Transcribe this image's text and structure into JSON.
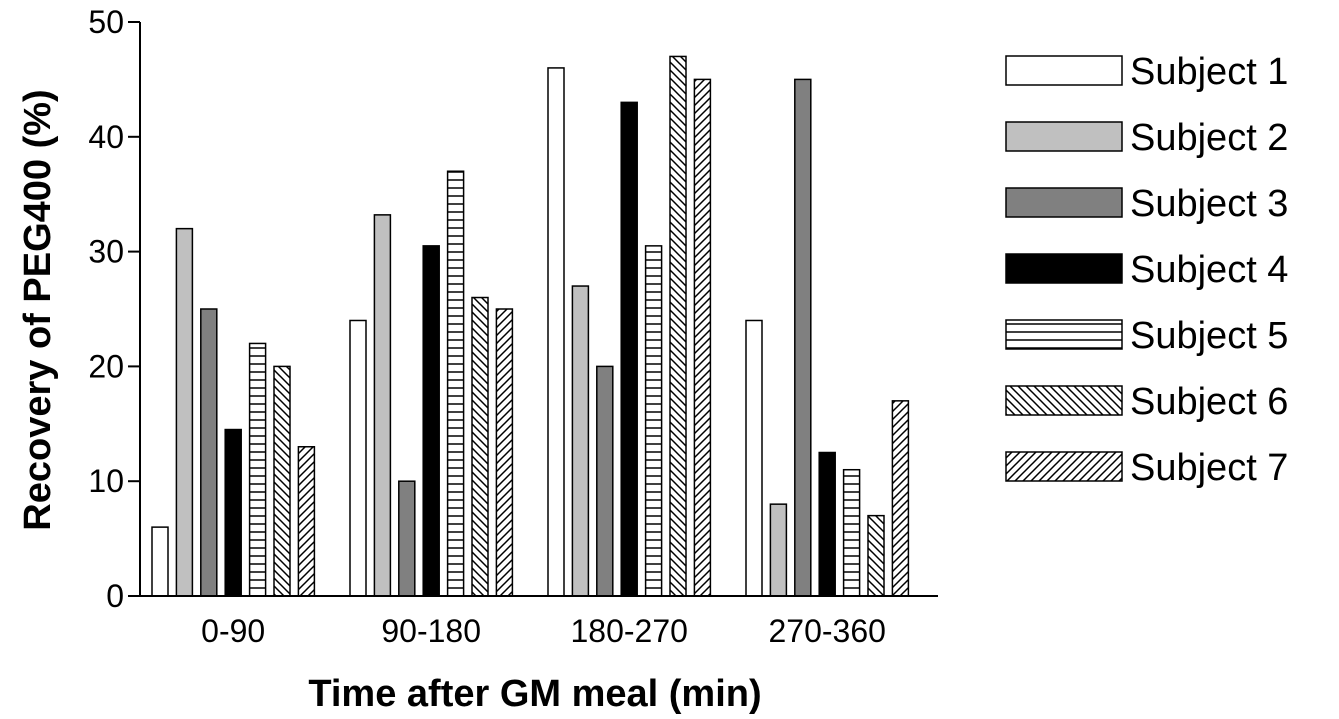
{
  "chart_data": {
    "type": "bar",
    "xlabel": "Time after GM meal (min)",
    "ylabel": "Recovery of PEG400 (%)",
    "ylim": [
      0,
      50
    ],
    "yticks": [
      0,
      10,
      20,
      30,
      40,
      50
    ],
    "categories": [
      "0-90",
      "90-180",
      "180-270",
      "270-360"
    ],
    "legend_position": "right",
    "grid": false,
    "series": [
      {
        "name": "Subject 1",
        "values": [
          6,
          24,
          46,
          24
        ],
        "fill": "#ffffff",
        "pattern": "none"
      },
      {
        "name": "Subject 2",
        "values": [
          32,
          33.2,
          27,
          8
        ],
        "fill": "#c0c0c0",
        "pattern": "none"
      },
      {
        "name": "Subject 3",
        "values": [
          25,
          10,
          20,
          45
        ],
        "fill": "#808080",
        "pattern": "none"
      },
      {
        "name": "Subject 4",
        "values": [
          14.5,
          30.5,
          43,
          12.5
        ],
        "fill": "#000000",
        "pattern": "none"
      },
      {
        "name": "Subject 5",
        "values": [
          22,
          37,
          30.5,
          11
        ],
        "fill": "#ffffff",
        "pattern": "horizontal"
      },
      {
        "name": "Subject 6",
        "values": [
          20,
          26,
          47,
          7
        ],
        "fill": "#ffffff",
        "pattern": "diagonal-down"
      },
      {
        "name": "Subject 7",
        "values": [
          13,
          25,
          45,
          17
        ],
        "fill": "#ffffff",
        "pattern": "diagonal-up"
      }
    ]
  }
}
